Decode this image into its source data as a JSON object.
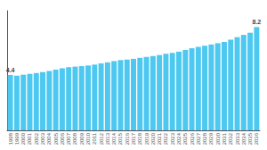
{
  "chart_data": {
    "type": "bar",
    "categories": [
      "1998",
      "1999",
      "2000",
      "2001",
      "2002",
      "2003",
      "2004",
      "2005",
      "2006",
      "2007",
      "2008",
      "2009",
      "2010",
      "2011",
      "2012",
      "2013",
      "2014",
      "2015",
      "2016",
      "2017",
      "2018",
      "2019",
      "2020",
      "2021",
      "2022",
      "2023",
      "2024",
      "2025",
      "2026",
      "2027",
      "2028",
      "2029",
      "2030",
      "2031",
      "2032",
      "2033",
      "2034",
      "2035",
      "2036"
    ],
    "values": [
      4.4,
      4.35,
      4.42,
      4.48,
      4.55,
      4.63,
      4.72,
      4.82,
      4.93,
      5.02,
      5.06,
      5.1,
      5.15,
      5.22,
      5.32,
      5.4,
      5.5,
      5.58,
      5.62,
      5.68,
      5.76,
      5.83,
      5.9,
      5.98,
      6.08,
      6.15,
      6.25,
      6.38,
      6.52,
      6.63,
      6.72,
      6.82,
      6.92,
      7.02,
      7.2,
      7.4,
      7.58,
      7.75,
      8.2
    ],
    "color": "#4DC8F0",
    "ylim": [
      0,
      9.5
    ],
    "grid": false,
    "tick_labels": "x",
    "annotations": [
      {
        "text": "4.4",
        "x": "1998",
        "y": 4.4
      },
      {
        "text": "8.2",
        "x": "2036",
        "y": 8.2
      }
    ]
  }
}
